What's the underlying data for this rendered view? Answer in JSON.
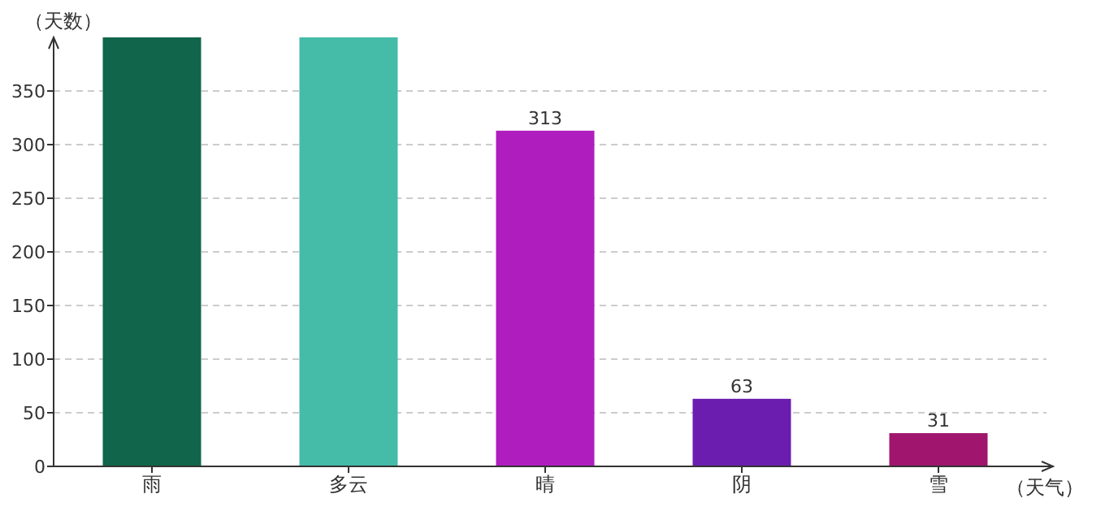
{
  "chart_data": {
    "type": "bar",
    "xlabel": "（天气）",
    "ylabel": "（天数）",
    "categories": [
      "雨",
      "多云",
      "晴",
      "阴",
      "雪"
    ],
    "values": [
      400,
      400,
      313,
      63,
      31
    ],
    "value_labels": [
      null,
      null,
      "313",
      "63",
      "31"
    ],
    "colors": [
      "#10654b",
      "#44bca8",
      "#b01dbf",
      "#6a1daf",
      "#a0166e"
    ],
    "ylim": [
      0,
      400
    ],
    "yticks": [
      0,
      50,
      100,
      150,
      200,
      250,
      300,
      350
    ],
    "grid": "y"
  }
}
